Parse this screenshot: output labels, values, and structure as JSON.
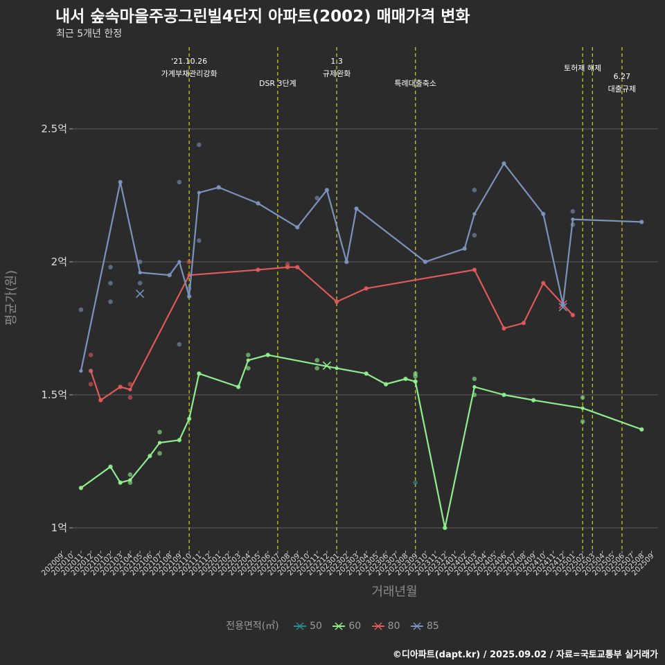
{
  "title": "내서 숲속마을주공그린빌4단지 아파트(2002) 매매가격 변화",
  "subtitle": "최근 5개년 한정",
  "caption": "©디아파트(dapt.kr) / 2025.09.02 / 자료=국토교통부 실거래가",
  "chart_data": {
    "type": "line",
    "title": "내서 숲속마을주공그린빌4단지 아파트(2002) 매매가격 변화",
    "subtitle": "최근 5개년 한정",
    "xlabel": "거래년월",
    "ylabel": "평균가(원)",
    "ylim": [
      0.92,
      2.63
    ],
    "yticks": [
      1,
      1.5,
      2,
      2.5
    ],
    "ytick_labels": [
      "1억",
      "1.5억",
      "2억",
      "2.5억"
    ],
    "x_categories": [
      "202009",
      "202010",
      "202011",
      "202012",
      "202101",
      "202102",
      "202103",
      "202104",
      "202105",
      "202106",
      "202107",
      "202108",
      "202109",
      "202110",
      "202111",
      "202112",
      "202201",
      "202202",
      "202203",
      "202204",
      "202205",
      "202206",
      "202207",
      "202208",
      "202209",
      "202210",
      "202211",
      "202212",
      "202301",
      "202302",
      "202303",
      "202304",
      "202305",
      "202306",
      "202307",
      "202308",
      "202309",
      "202310",
      "202311",
      "202312",
      "202401",
      "202402",
      "202403",
      "202404",
      "202405",
      "202406",
      "202407",
      "202408",
      "202409",
      "202410",
      "202411",
      "202412",
      "202501",
      "202502",
      "202503",
      "202504",
      "202505",
      "202506",
      "202507",
      "202508",
      "202509"
    ],
    "legend_title": "전용면적(㎡)",
    "legend_position": "bottom",
    "grid": "horizontal",
    "series": [
      {
        "name": "50",
        "color": "#2a8f8f",
        "line": [],
        "points": [
          [
            "202309",
            1.17
          ]
        ]
      },
      {
        "name": "60",
        "color": "#90ee90",
        "line": [
          [
            "202011",
            1.15
          ],
          [
            "202102",
            1.23
          ],
          [
            "202103",
            1.17
          ],
          [
            "202104",
            1.18
          ],
          [
            "202106",
            1.27
          ],
          [
            "202107",
            1.32
          ],
          [
            "202109",
            1.33
          ],
          [
            "202110",
            1.41
          ],
          [
            "202111",
            1.58
          ],
          [
            "202203",
            1.53
          ],
          [
            "202204",
            1.63
          ],
          [
            "202206",
            1.65
          ],
          [
            "202301",
            1.6
          ],
          [
            "202304",
            1.58
          ],
          [
            "202306",
            1.54
          ],
          [
            "202308",
            1.56
          ],
          [
            "202309",
            1.55
          ],
          [
            "202312",
            1.0
          ],
          [
            "202403",
            1.53
          ],
          [
            "202406",
            1.5
          ],
          [
            "202409",
            1.48
          ],
          [
            "202502",
            1.45
          ],
          [
            "202508",
            1.37
          ]
        ],
        "points": [
          [
            "202011",
            1.15
          ],
          [
            "202102",
            1.23
          ],
          [
            "202103",
            1.17
          ],
          [
            "202104",
            1.17
          ],
          [
            "202104",
            1.2
          ],
          [
            "202106",
            1.27
          ],
          [
            "202107",
            1.28
          ],
          [
            "202107",
            1.36
          ],
          [
            "202109",
            1.33
          ],
          [
            "202110",
            1.41
          ],
          [
            "202111",
            1.58
          ],
          [
            "202203",
            1.53
          ],
          [
            "202204",
            1.6
          ],
          [
            "202204",
            1.65
          ],
          [
            "202206",
            1.65
          ],
          [
            "202211",
            1.6
          ],
          [
            "202211",
            1.63
          ],
          [
            "202304",
            1.58
          ],
          [
            "202306",
            1.54
          ],
          [
            "202308",
            1.56
          ],
          [
            "202309",
            1.55
          ],
          [
            "202309",
            1.57
          ],
          [
            "202309",
            1.58
          ],
          [
            "202312",
            1.0
          ],
          [
            "202403",
            1.5
          ],
          [
            "202403",
            1.56
          ],
          [
            "202406",
            1.5
          ],
          [
            "202409",
            1.48
          ],
          [
            "202502",
            1.4
          ],
          [
            "202502",
            1.49
          ],
          [
            "202508",
            1.37
          ]
        ],
        "crosses": [
          [
            "202212",
            1.61
          ]
        ]
      },
      {
        "name": "80",
        "color": "#e05a5a",
        "line": [
          [
            "202012",
            1.59
          ],
          [
            "202101",
            1.48
          ],
          [
            "202103",
            1.53
          ],
          [
            "202104",
            1.52
          ],
          [
            "202110",
            1.95
          ],
          [
            "202205",
            1.97
          ],
          [
            "202208",
            1.98
          ],
          [
            "202209",
            1.98
          ],
          [
            "202301",
            1.85
          ],
          [
            "202304",
            1.9
          ],
          [
            "202403",
            1.97
          ],
          [
            "202406",
            1.75
          ],
          [
            "202408",
            1.77
          ],
          [
            "202410",
            1.92
          ],
          [
            "202501",
            1.8
          ]
        ],
        "points": [
          [
            "202012",
            1.54
          ],
          [
            "202012",
            1.65
          ],
          [
            "202101",
            1.48
          ],
          [
            "202103",
            1.53
          ],
          [
            "202104",
            1.49
          ],
          [
            "202104",
            1.54
          ],
          [
            "202110",
            2.0
          ],
          [
            "202205",
            1.97
          ],
          [
            "202208",
            1.98
          ],
          [
            "202208",
            1.99
          ],
          [
            "202209",
            1.98
          ],
          [
            "202301",
            1.85
          ],
          [
            "202304",
            1.9
          ],
          [
            "202403",
            1.97
          ],
          [
            "202406",
            1.75
          ],
          [
            "202408",
            1.77
          ],
          [
            "202410",
            1.92
          ],
          [
            "202501",
            1.8
          ]
        ],
        "crosses": [
          [
            "202412",
            1.84
          ]
        ]
      },
      {
        "name": "85",
        "color": "#7b93bd",
        "line": [
          [
            "202011",
            1.59
          ],
          [
            "202103",
            2.3
          ],
          [
            "202105",
            1.96
          ],
          [
            "202108",
            1.95
          ],
          [
            "202109",
            2.0
          ],
          [
            "202110",
            1.87
          ],
          [
            "202111",
            2.26
          ],
          [
            "202201",
            2.28
          ],
          [
            "202205",
            2.22
          ],
          [
            "202209",
            2.13
          ],
          [
            "202212",
            2.27
          ],
          [
            "202302",
            2.0
          ],
          [
            "202303",
            2.2
          ],
          [
            "202310",
            2.0
          ],
          [
            "202402",
            2.05
          ],
          [
            "202403",
            2.18
          ],
          [
            "202406",
            2.37
          ],
          [
            "202410",
            2.18
          ],
          [
            "202412",
            1.84
          ],
          [
            "202501",
            2.16
          ],
          [
            "202508",
            2.15
          ]
        ],
        "points": [
          [
            "202011",
            1.82
          ],
          [
            "202012",
            1.59
          ],
          [
            "202102",
            1.85
          ],
          [
            "202102",
            1.92
          ],
          [
            "202102",
            1.98
          ],
          [
            "202103",
            2.3
          ],
          [
            "202105",
            1.92
          ],
          [
            "202105",
            2.0
          ],
          [
            "202108",
            1.95
          ],
          [
            "202109",
            1.69
          ],
          [
            "202109",
            2.3
          ],
          [
            "202110",
            1.87
          ],
          [
            "202110",
            1.9
          ],
          [
            "202111",
            2.08
          ],
          [
            "202111",
            2.44
          ],
          [
            "202201",
            2.28
          ],
          [
            "202205",
            2.22
          ],
          [
            "202209",
            2.13
          ],
          [
            "202211",
            2.24
          ],
          [
            "202212",
            2.27
          ],
          [
            "202302",
            2.0
          ],
          [
            "202303",
            2.2
          ],
          [
            "202310",
            2.0
          ],
          [
            "202402",
            2.05
          ],
          [
            "202403",
            2.1
          ],
          [
            "202403",
            2.27
          ],
          [
            "202406",
            2.37
          ],
          [
            "202410",
            2.18
          ],
          [
            "202501",
            2.14
          ],
          [
            "202501",
            2.19
          ],
          [
            "202508",
            2.15
          ]
        ],
        "crosses": [
          [
            "202105",
            1.88
          ],
          [
            "202412",
            1.83
          ]
        ]
      }
    ],
    "annotations": [
      {
        "month": "202110",
        "lines": [
          "'21.10.26",
          "가계부채관리강화"
        ]
      },
      {
        "month": "202207",
        "lines": [
          "DSR 3단계"
        ]
      },
      {
        "month": "202301",
        "lines": [
          "1.3",
          "규제완화"
        ]
      },
      {
        "month": "202309",
        "lines": [
          "특례대출축소"
        ]
      },
      {
        "month": "202502",
        "lines": [
          "토허제 해제"
        ]
      },
      {
        "month": "202503",
        "lines": []
      },
      {
        "month": "202506",
        "lines": [
          "6.27",
          "대출규제"
        ]
      }
    ]
  }
}
